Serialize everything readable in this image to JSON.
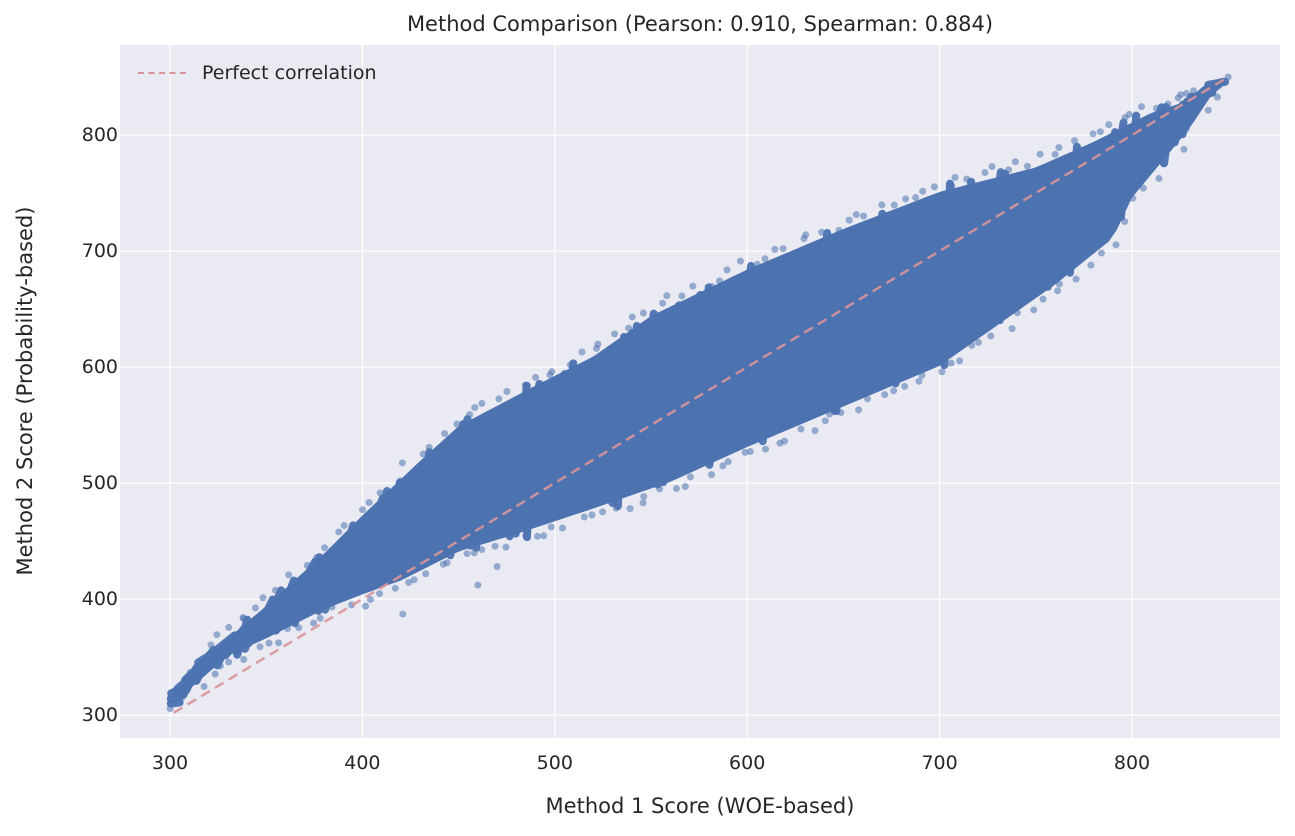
{
  "chart_data": {
    "type": "scatter",
    "title": "Method Comparison (Pearson: 0.910, Spearman: 0.884)",
    "xlabel": "Method 1 Score (WOE-based)",
    "ylabel": "Method 2 Score (Probability-based)",
    "xlim": [
      274,
      877
    ],
    "ylim": [
      280,
      878
    ],
    "xticks": [
      300,
      400,
      500,
      600,
      700,
      800
    ],
    "yticks": [
      300,
      400,
      500,
      600,
      700,
      800
    ],
    "grid": true,
    "legend": {
      "position": "upper left",
      "entries": [
        "Perfect correlation"
      ]
    },
    "stats": {
      "pearson": 0.91,
      "spearman": 0.884
    },
    "series": [
      {
        "name": "scores",
        "kind": "scatter",
        "color": "#4c72b0",
        "alpha": 0.5,
        "description": "dense band of diagonal streaks",
        "upper_envelope": [
          [
            302,
            310
          ],
          [
            310,
            340
          ],
          [
            330,
            372
          ],
          [
            350,
            400
          ],
          [
            380,
            445
          ],
          [
            400,
            478
          ],
          [
            430,
            525
          ],
          [
            450,
            555
          ],
          [
            490,
            590
          ],
          [
            520,
            615
          ],
          [
            550,
            650
          ],
          [
            600,
            690
          ],
          [
            650,
            725
          ],
          [
            700,
            757
          ],
          [
            750,
            778
          ],
          [
            780,
            800
          ],
          [
            810,
            825
          ],
          [
            830,
            836
          ],
          [
            850,
            850
          ]
        ],
        "lower_envelope": [
          [
            302,
            306
          ],
          [
            310,
            316
          ],
          [
            330,
            345
          ],
          [
            350,
            360
          ],
          [
            380,
            385
          ],
          [
            400,
            398
          ],
          [
            420,
            410
          ],
          [
            450,
            435
          ],
          [
            480,
            450
          ],
          [
            520,
            472
          ],
          [
            560,
            495
          ],
          [
            600,
            525
          ],
          [
            650,
            560
          ],
          [
            700,
            595
          ],
          [
            730,
            630
          ],
          [
            760,
            665
          ],
          [
            790,
            705
          ],
          [
            800,
            740
          ],
          [
            830,
            800
          ],
          [
            850,
            850
          ]
        ],
        "outliers": [
          [
            421,
            387
          ],
          [
            470,
            428
          ],
          [
            460,
            412
          ],
          [
            338,
            384
          ],
          [
            824,
            832
          ],
          [
            832,
            838
          ],
          [
            850,
            850
          ]
        ]
      },
      {
        "name": "Perfect correlation",
        "kind": "line",
        "style": "dashed",
        "color": "#d9959a",
        "x": [
          302,
          850
        ],
        "y": [
          302,
          850
        ]
      }
    ]
  },
  "colors": {
    "background": "#eaeaf2",
    "grid": "#ffffff",
    "points": "#4c72b0",
    "diagonal": "#d9959a"
  }
}
